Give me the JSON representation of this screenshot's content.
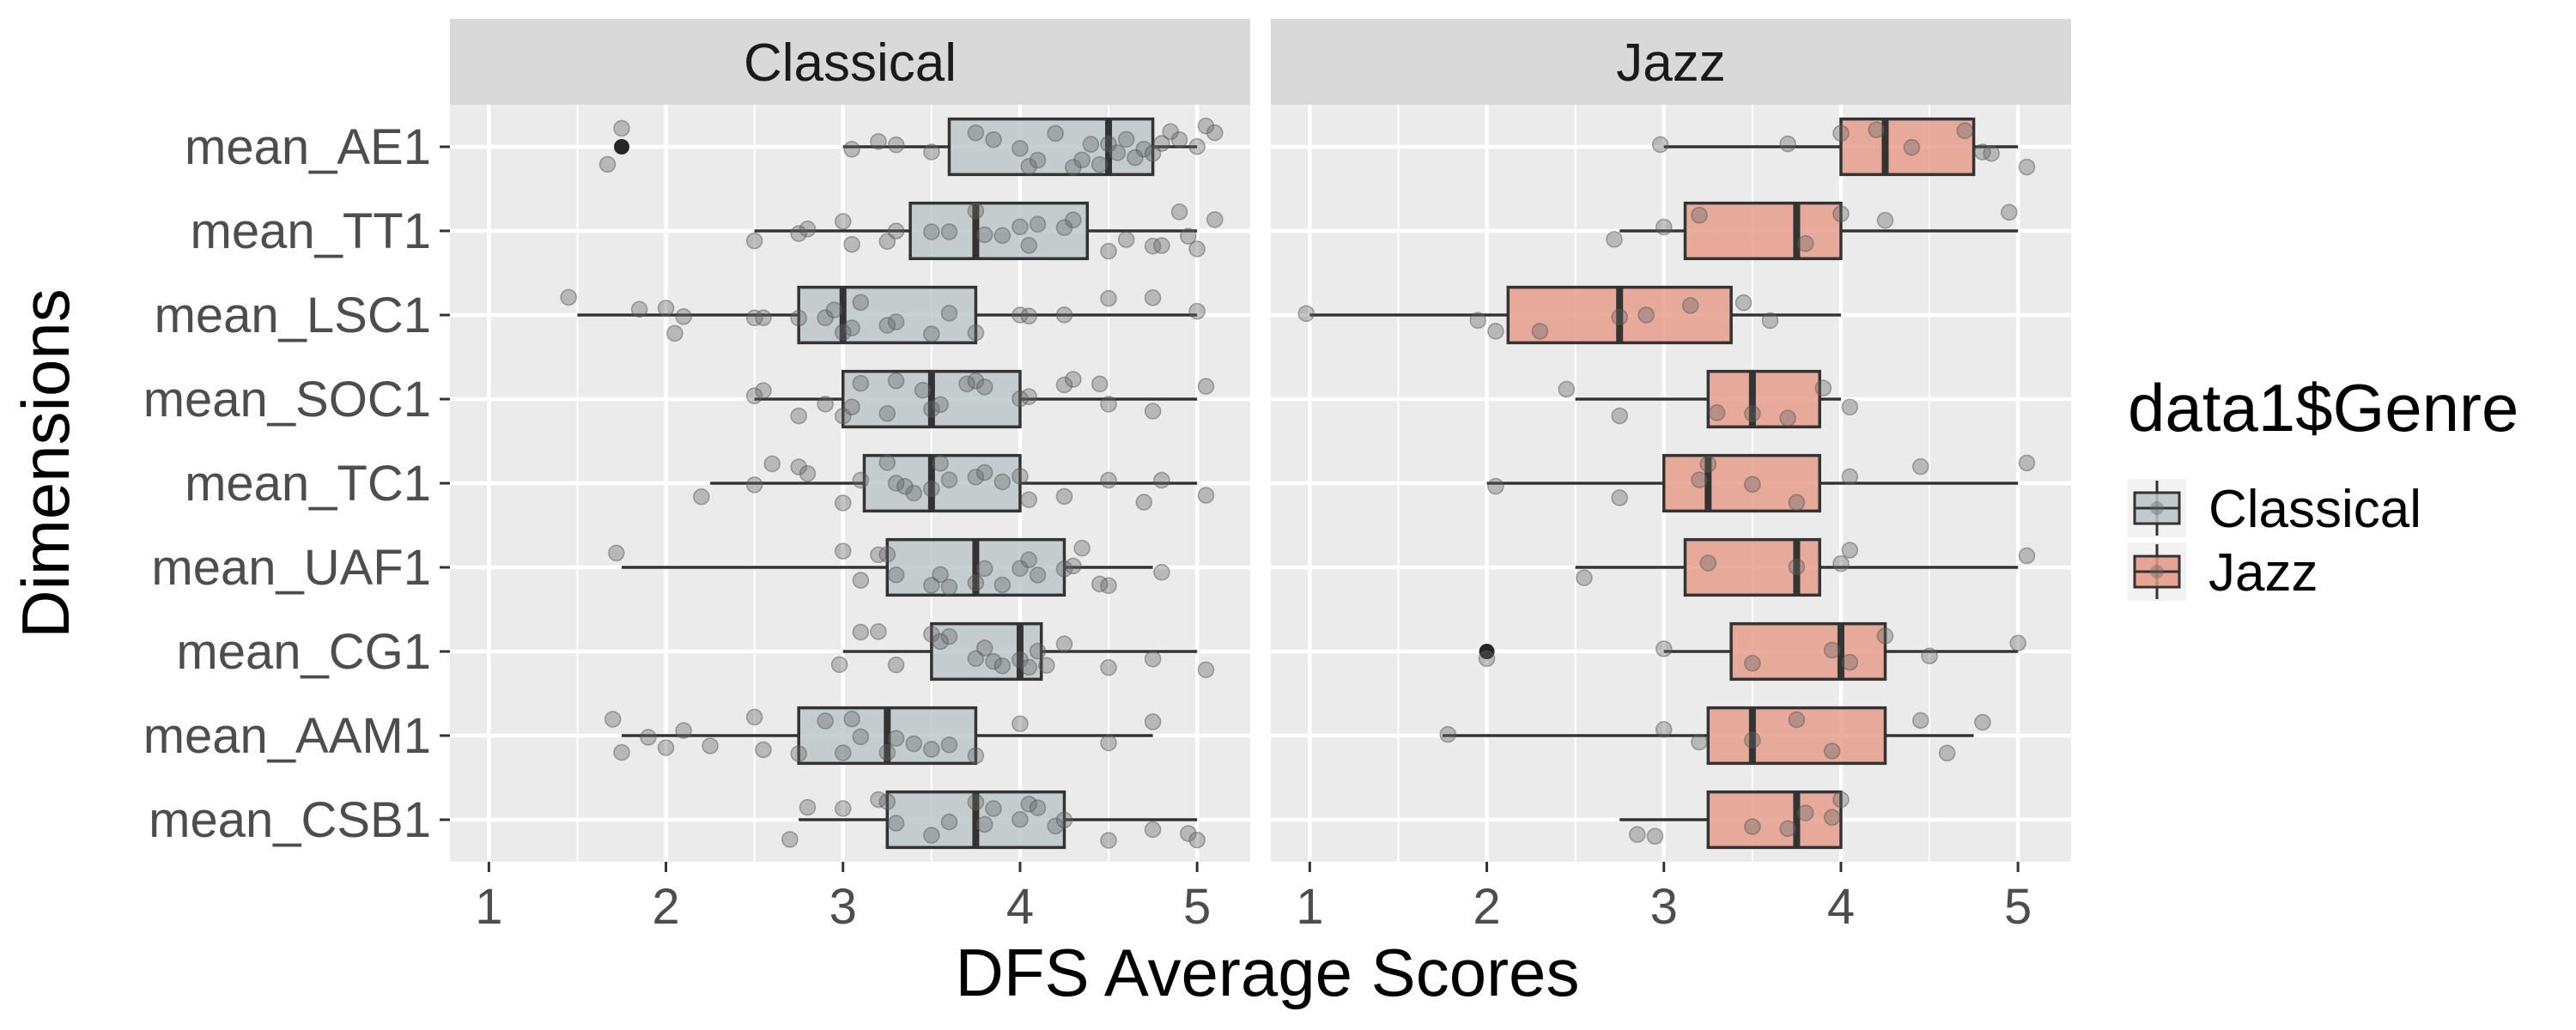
{
  "chart_data": {
    "type": "boxplot",
    "orientation": "horizontal",
    "xlabel": "DFS Average Scores",
    "ylabel": "Dimensions",
    "xlim": [
      0.78,
      5.3
    ],
    "x_ticks": [
      "1",
      "2",
      "3",
      "4",
      "5"
    ],
    "x_tick_values": [
      1,
      2,
      3,
      4,
      5
    ],
    "categories": [
      "mean_AE1",
      "mean_TT1",
      "mean_LSC1",
      "mean_SOC1",
      "mean_TC1",
      "mean_UAF1",
      "mean_CG1",
      "mean_AAM1",
      "mean_CSB1"
    ],
    "legend": {
      "title": "data1$Genre",
      "position": "right",
      "entries": [
        {
          "label": "Classical",
          "fill": "#b8c4c4"
        },
        {
          "label": "Jazz",
          "fill": "#e59682"
        }
      ]
    },
    "colors": {
      "panel_bg": "#ebebeb",
      "strip_bg": "#d9d9d9",
      "grid": "#ffffff",
      "box_line": "#333333",
      "point": "#666666",
      "outlier": "#262626",
      "classical_fill": "#b8c4c4",
      "jazz_fill": "#e59682"
    },
    "panels": [
      {
        "name": "Classical",
        "fill": "#b8c4c4",
        "boxes": [
          {
            "category": "mean_AE1",
            "whisker_low": 3.0,
            "q1": 3.6,
            "median": 4.5,
            "q3": 4.75,
            "whisker_high": 5.0,
            "outliers": [
              1.75
            ],
            "points": [
              1.67,
              1.75,
              3.05,
              3.2,
              3.3,
              3.5,
              3.75,
              3.85,
              4.0,
              4.05,
              4.1,
              4.2,
              4.3,
              4.35,
              4.4,
              4.45,
              4.5,
              4.55,
              4.6,
              4.65,
              4.7,
              4.75,
              4.8,
              4.85,
              4.9,
              5.0,
              5.05,
              5.1
            ]
          },
          {
            "category": "mean_TT1",
            "whisker_low": 2.5,
            "q1": 3.38,
            "median": 3.75,
            "q3": 4.38,
            "whisker_high": 5.0,
            "outliers": [],
            "points": [
              2.5,
              2.75,
              2.8,
              3.0,
              3.05,
              3.25,
              3.3,
              3.5,
              3.6,
              3.75,
              3.8,
              3.9,
              4.0,
              4.05,
              4.1,
              4.25,
              4.3,
              4.5,
              4.6,
              4.75,
              4.8,
              4.9,
              4.95,
              5.0,
              5.1
            ]
          },
          {
            "category": "mean_LSC1",
            "whisker_low": 1.5,
            "q1": 2.75,
            "median": 3.0,
            "q3": 3.75,
            "whisker_high": 5.0,
            "outliers": [],
            "points": [
              1.45,
              1.85,
              2.0,
              2.05,
              2.1,
              2.5,
              2.55,
              2.75,
              2.9,
              2.95,
              3.0,
              3.05,
              3.1,
              3.25,
              3.3,
              3.5,
              3.6,
              3.75,
              4.0,
              4.05,
              4.25,
              4.5,
              4.75,
              5.0
            ]
          },
          {
            "category": "mean_SOC1",
            "whisker_low": 2.5,
            "q1": 3.0,
            "median": 3.5,
            "q3": 4.0,
            "whisker_high": 5.0,
            "outliers": [],
            "points": [
              2.5,
              2.55,
              2.75,
              2.9,
              3.0,
              3.05,
              3.1,
              3.25,
              3.3,
              3.45,
              3.5,
              3.55,
              3.7,
              3.75,
              3.8,
              4.0,
              4.05,
              4.25,
              4.3,
              4.45,
              4.5,
              4.75,
              5.05
            ]
          },
          {
            "category": "mean_TC1",
            "whisker_low": 2.25,
            "q1": 3.12,
            "median": 3.5,
            "q3": 4.0,
            "whisker_high": 5.0,
            "outliers": [],
            "points": [
              2.2,
              2.5,
              2.6,
              2.75,
              2.8,
              3.0,
              3.1,
              3.25,
              3.3,
              3.35,
              3.4,
              3.5,
              3.55,
              3.6,
              3.75,
              3.8,
              3.9,
              4.0,
              4.05,
              4.25,
              4.5,
              4.7,
              4.8,
              5.05
            ]
          },
          {
            "category": "mean_UAF1",
            "whisker_low": 1.75,
            "q1": 3.25,
            "median": 3.75,
            "q3": 4.25,
            "whisker_high": 4.75,
            "outliers": [],
            "points": [
              1.72,
              3.0,
              3.1,
              3.2,
              3.25,
              3.3,
              3.5,
              3.55,
              3.6,
              3.75,
              3.8,
              3.9,
              4.0,
              4.05,
              4.1,
              4.25,
              4.3,
              4.35,
              4.45,
              4.5,
              4.8
            ]
          },
          {
            "category": "mean_CG1",
            "whisker_low": 3.0,
            "q1": 3.5,
            "median": 4.0,
            "q3": 4.12,
            "whisker_high": 5.0,
            "outliers": [],
            "points": [
              2.98,
              3.1,
              3.2,
              3.3,
              3.5,
              3.55,
              3.6,
              3.75,
              3.8,
              3.85,
              3.9,
              4.0,
              4.05,
              4.1,
              4.15,
              4.25,
              4.5,
              4.75,
              5.05
            ]
          },
          {
            "category": "mean_AAM1",
            "whisker_low": 1.75,
            "q1": 2.75,
            "median": 3.25,
            "q3": 3.75,
            "whisker_high": 4.75,
            "outliers": [],
            "points": [
              1.7,
              1.75,
              1.9,
              2.0,
              2.1,
              2.25,
              2.5,
              2.55,
              2.75,
              2.9,
              3.0,
              3.05,
              3.1,
              3.25,
              3.3,
              3.4,
              3.5,
              3.6,
              3.75,
              4.0,
              4.5,
              4.75
            ]
          },
          {
            "category": "mean_CSB1",
            "whisker_low": 2.75,
            "q1": 3.25,
            "median": 3.75,
            "q3": 4.25,
            "whisker_high": 5.0,
            "outliers": [],
            "points": [
              2.7,
              2.8,
              3.0,
              3.2,
              3.25,
              3.3,
              3.5,
              3.6,
              3.75,
              3.8,
              3.85,
              4.0,
              4.05,
              4.1,
              4.2,
              4.25,
              4.5,
              4.75,
              4.95,
              5.0
            ]
          }
        ]
      },
      {
        "name": "Jazz",
        "fill": "#e59682",
        "boxes": [
          {
            "category": "mean_AE1",
            "whisker_low": 3.0,
            "q1": 4.0,
            "median": 4.25,
            "q3": 4.75,
            "whisker_high": 5.0,
            "outliers": [],
            "points": [
              2.98,
              3.7,
              4.0,
              4.2,
              4.4,
              4.7,
              4.8,
              4.85,
              5.05
            ]
          },
          {
            "category": "mean_TT1",
            "whisker_low": 2.75,
            "q1": 3.12,
            "median": 3.75,
            "q3": 4.0,
            "whisker_high": 5.0,
            "outliers": [],
            "points": [
              2.72,
              3.0,
              3.2,
              3.8,
              4.0,
              4.25,
              4.95
            ]
          },
          {
            "category": "mean_LSC1",
            "whisker_low": 1.0,
            "q1": 2.12,
            "median": 2.75,
            "q3": 3.38,
            "whisker_high": 4.0,
            "outliers": [],
            "points": [
              0.98,
              1.95,
              2.05,
              2.3,
              2.75,
              2.9,
              3.15,
              3.45,
              3.6
            ]
          },
          {
            "category": "mean_SOC1",
            "whisker_low": 2.5,
            "q1": 3.25,
            "median": 3.5,
            "q3": 3.88,
            "whisker_high": 4.0,
            "outliers": [],
            "points": [
              2.45,
              2.75,
              3.3,
              3.5,
              3.7,
              3.9,
              4.05
            ]
          },
          {
            "category": "mean_TC1",
            "whisker_low": 2.0,
            "q1": 3.0,
            "median": 3.25,
            "q3": 3.88,
            "whisker_high": 5.0,
            "outliers": [],
            "points": [
              2.05,
              2.75,
              3.2,
              3.25,
              3.5,
              3.75,
              4.05,
              4.45,
              5.05
            ]
          },
          {
            "category": "mean_UAF1",
            "whisker_low": 2.5,
            "q1": 3.12,
            "median": 3.75,
            "q3": 3.88,
            "whisker_high": 5.0,
            "outliers": [],
            "points": [
              2.55,
              3.25,
              3.75,
              4.0,
              4.05,
              5.05
            ]
          },
          {
            "category": "mean_CG1",
            "whisker_low": 3.0,
            "q1": 3.38,
            "median": 4.0,
            "q3": 4.25,
            "whisker_high": 5.0,
            "outliers": [
              2.0
            ],
            "points": [
              2.0,
              3.0,
              3.5,
              3.95,
              4.05,
              4.25,
              4.5,
              5.0
            ]
          },
          {
            "category": "mean_AAM1",
            "whisker_low": 1.75,
            "q1": 3.25,
            "median": 3.5,
            "q3": 4.25,
            "whisker_high": 4.75,
            "outliers": [],
            "points": [
              1.78,
              3.0,
              3.2,
              3.5,
              3.75,
              3.95,
              4.45,
              4.6,
              4.8
            ]
          },
          {
            "category": "mean_CSB1",
            "whisker_low": 2.75,
            "q1": 3.25,
            "median": 3.75,
            "q3": 4.0,
            "whisker_high": 4.0,
            "outliers": [],
            "points": [
              2.85,
              2.95,
              3.5,
              3.7,
              3.8,
              3.95,
              4.0
            ]
          }
        ]
      }
    ]
  }
}
